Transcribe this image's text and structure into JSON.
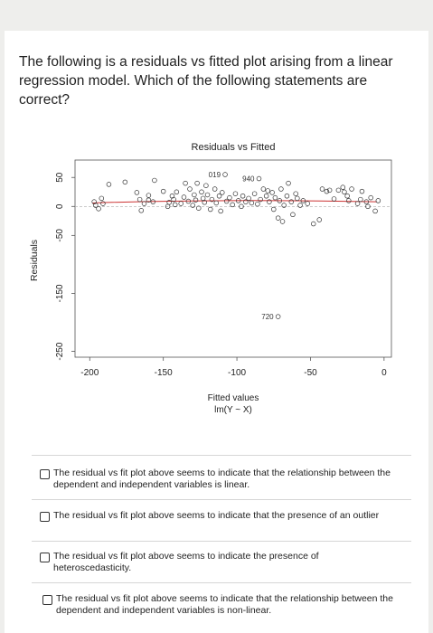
{
  "question": {
    "text": "The following is a residuals vs fitted plot arising from a linear regression model. Which of the following statements are correct?"
  },
  "chart_data": {
    "type": "scatter",
    "title": "Residuals vs Fitted",
    "xlabel": "Fitted values",
    "xlabel2": "lm(Y ~ X)",
    "ylabel": "Residuals",
    "xlim": [
      -210,
      5
    ],
    "ylim": [
      -260,
      80
    ],
    "xticks": [
      -200,
      -150,
      -100,
      -50,
      0
    ],
    "yticks": [
      50,
      0,
      -50,
      -150,
      -250
    ],
    "annotations": [
      {
        "label": "019",
        "x": -108,
        "y": 55
      },
      {
        "label": "940",
        "x": -85,
        "y": 48
      },
      {
        "label": "720",
        "x": -72,
        "y": -190
      }
    ],
    "points": [
      {
        "x": -197,
        "y": 8
      },
      {
        "x": -196,
        "y": 2
      },
      {
        "x": -194,
        "y": -4
      },
      {
        "x": -192,
        "y": 14
      },
      {
        "x": -191,
        "y": 5
      },
      {
        "x": -187,
        "y": 38
      },
      {
        "x": -176,
        "y": 42
      },
      {
        "x": -168,
        "y": 24
      },
      {
        "x": -166,
        "y": 12
      },
      {
        "x": -165,
        "y": -7
      },
      {
        "x": -163,
        "y": 5
      },
      {
        "x": -160,
        "y": 11
      },
      {
        "x": -160,
        "y": 19
      },
      {
        "x": -157,
        "y": 8
      },
      {
        "x": -156,
        "y": 45
      },
      {
        "x": -150,
        "y": 26
      },
      {
        "x": -147,
        "y": 0
      },
      {
        "x": -146,
        "y": 7
      },
      {
        "x": -144,
        "y": 18
      },
      {
        "x": -143,
        "y": 12
      },
      {
        "x": -142,
        "y": 3
      },
      {
        "x": -141,
        "y": 25
      },
      {
        "x": -138,
        "y": 5
      },
      {
        "x": -136,
        "y": 16
      },
      {
        "x": -135,
        "y": 40
      },
      {
        "x": -133,
        "y": 9
      },
      {
        "x": -132,
        "y": 30
      },
      {
        "x": -130,
        "y": 2
      },
      {
        "x": -129,
        "y": 20
      },
      {
        "x": -128,
        "y": 11
      },
      {
        "x": -127,
        "y": 40
      },
      {
        "x": -126,
        "y": -3
      },
      {
        "x": -124,
        "y": 25
      },
      {
        "x": -123,
        "y": 14
      },
      {
        "x": -122,
        "y": 7
      },
      {
        "x": -121,
        "y": 36
      },
      {
        "x": -120,
        "y": 20
      },
      {
        "x": -118,
        "y": -5
      },
      {
        "x": -117,
        "y": 12
      },
      {
        "x": -115,
        "y": 30
      },
      {
        "x": -114,
        "y": 6
      },
      {
        "x": -112,
        "y": 18
      },
      {
        "x": -111,
        "y": -8
      },
      {
        "x": -110,
        "y": 24
      },
      {
        "x": -108,
        "y": 55
      },
      {
        "x": -107,
        "y": 9
      },
      {
        "x": -105,
        "y": 15
      },
      {
        "x": -103,
        "y": 3
      },
      {
        "x": -101,
        "y": 22
      },
      {
        "x": -99,
        "y": 10
      },
      {
        "x": -97,
        "y": 0
      },
      {
        "x": -96,
        "y": 18
      },
      {
        "x": -94,
        "y": 8
      },
      {
        "x": -92,
        "y": 14
      },
      {
        "x": -90,
        "y": 6
      },
      {
        "x": -88,
        "y": 22
      },
      {
        "x": -86,
        "y": 4
      },
      {
        "x": -85,
        "y": 48
      },
      {
        "x": -84,
        "y": 12
      },
      {
        "x": -82,
        "y": 30
      },
      {
        "x": -80,
        "y": 18
      },
      {
        "x": -79,
        "y": 27
      },
      {
        "x": -78,
        "y": 8
      },
      {
        "x": -76,
        "y": 24
      },
      {
        "x": -75,
        "y": -5
      },
      {
        "x": -74,
        "y": 15
      },
      {
        "x": -72,
        "y": -20
      },
      {
        "x": -71,
        "y": 10
      },
      {
        "x": -70,
        "y": 30
      },
      {
        "x": -69,
        "y": -26
      },
      {
        "x": -68,
        "y": 2
      },
      {
        "x": -66,
        "y": 18
      },
      {
        "x": -65,
        "y": 40
      },
      {
        "x": -63,
        "y": 8
      },
      {
        "x": -62,
        "y": -14
      },
      {
        "x": -60,
        "y": 22
      },
      {
        "x": -59,
        "y": 14
      },
      {
        "x": -57,
        "y": 2
      },
      {
        "x": -55,
        "y": 10
      },
      {
        "x": -52,
        "y": 5
      },
      {
        "x": -48,
        "y": -30
      },
      {
        "x": -44,
        "y": -23
      },
      {
        "x": -42,
        "y": 30
      },
      {
        "x": -39,
        "y": 26
      },
      {
        "x": -37,
        "y": 28
      },
      {
        "x": -34,
        "y": 13
      },
      {
        "x": -31,
        "y": 28
      },
      {
        "x": -28,
        "y": 33
      },
      {
        "x": -27,
        "y": 25
      },
      {
        "x": -25,
        "y": 18
      },
      {
        "x": -24,
        "y": 10
      },
      {
        "x": -22,
        "y": 30
      },
      {
        "x": -18,
        "y": 5
      },
      {
        "x": -16,
        "y": 12
      },
      {
        "x": -15,
        "y": 26
      },
      {
        "x": -12,
        "y": 8
      },
      {
        "x": -11,
        "y": 0
      },
      {
        "x": -9,
        "y": 15
      },
      {
        "x": -6,
        "y": -8
      },
      {
        "x": -4,
        "y": 10
      },
      {
        "x": -72,
        "y": -190
      }
    ]
  },
  "options": [
    {
      "text": "The residual vs fit plot above seems to indicate that the relationship between the dependent and independent variables is linear."
    },
    {
      "text": "The residual vs fit plot above seems to indicate that the presence of an outlier"
    },
    {
      "text": "The residual vs fit plot above seems to indicate the presence of heteroscedasticity."
    },
    {
      "text": "The residual vs fit plot above seems to indicate that the relationship between the dependent and independent variables is non-linear."
    }
  ]
}
